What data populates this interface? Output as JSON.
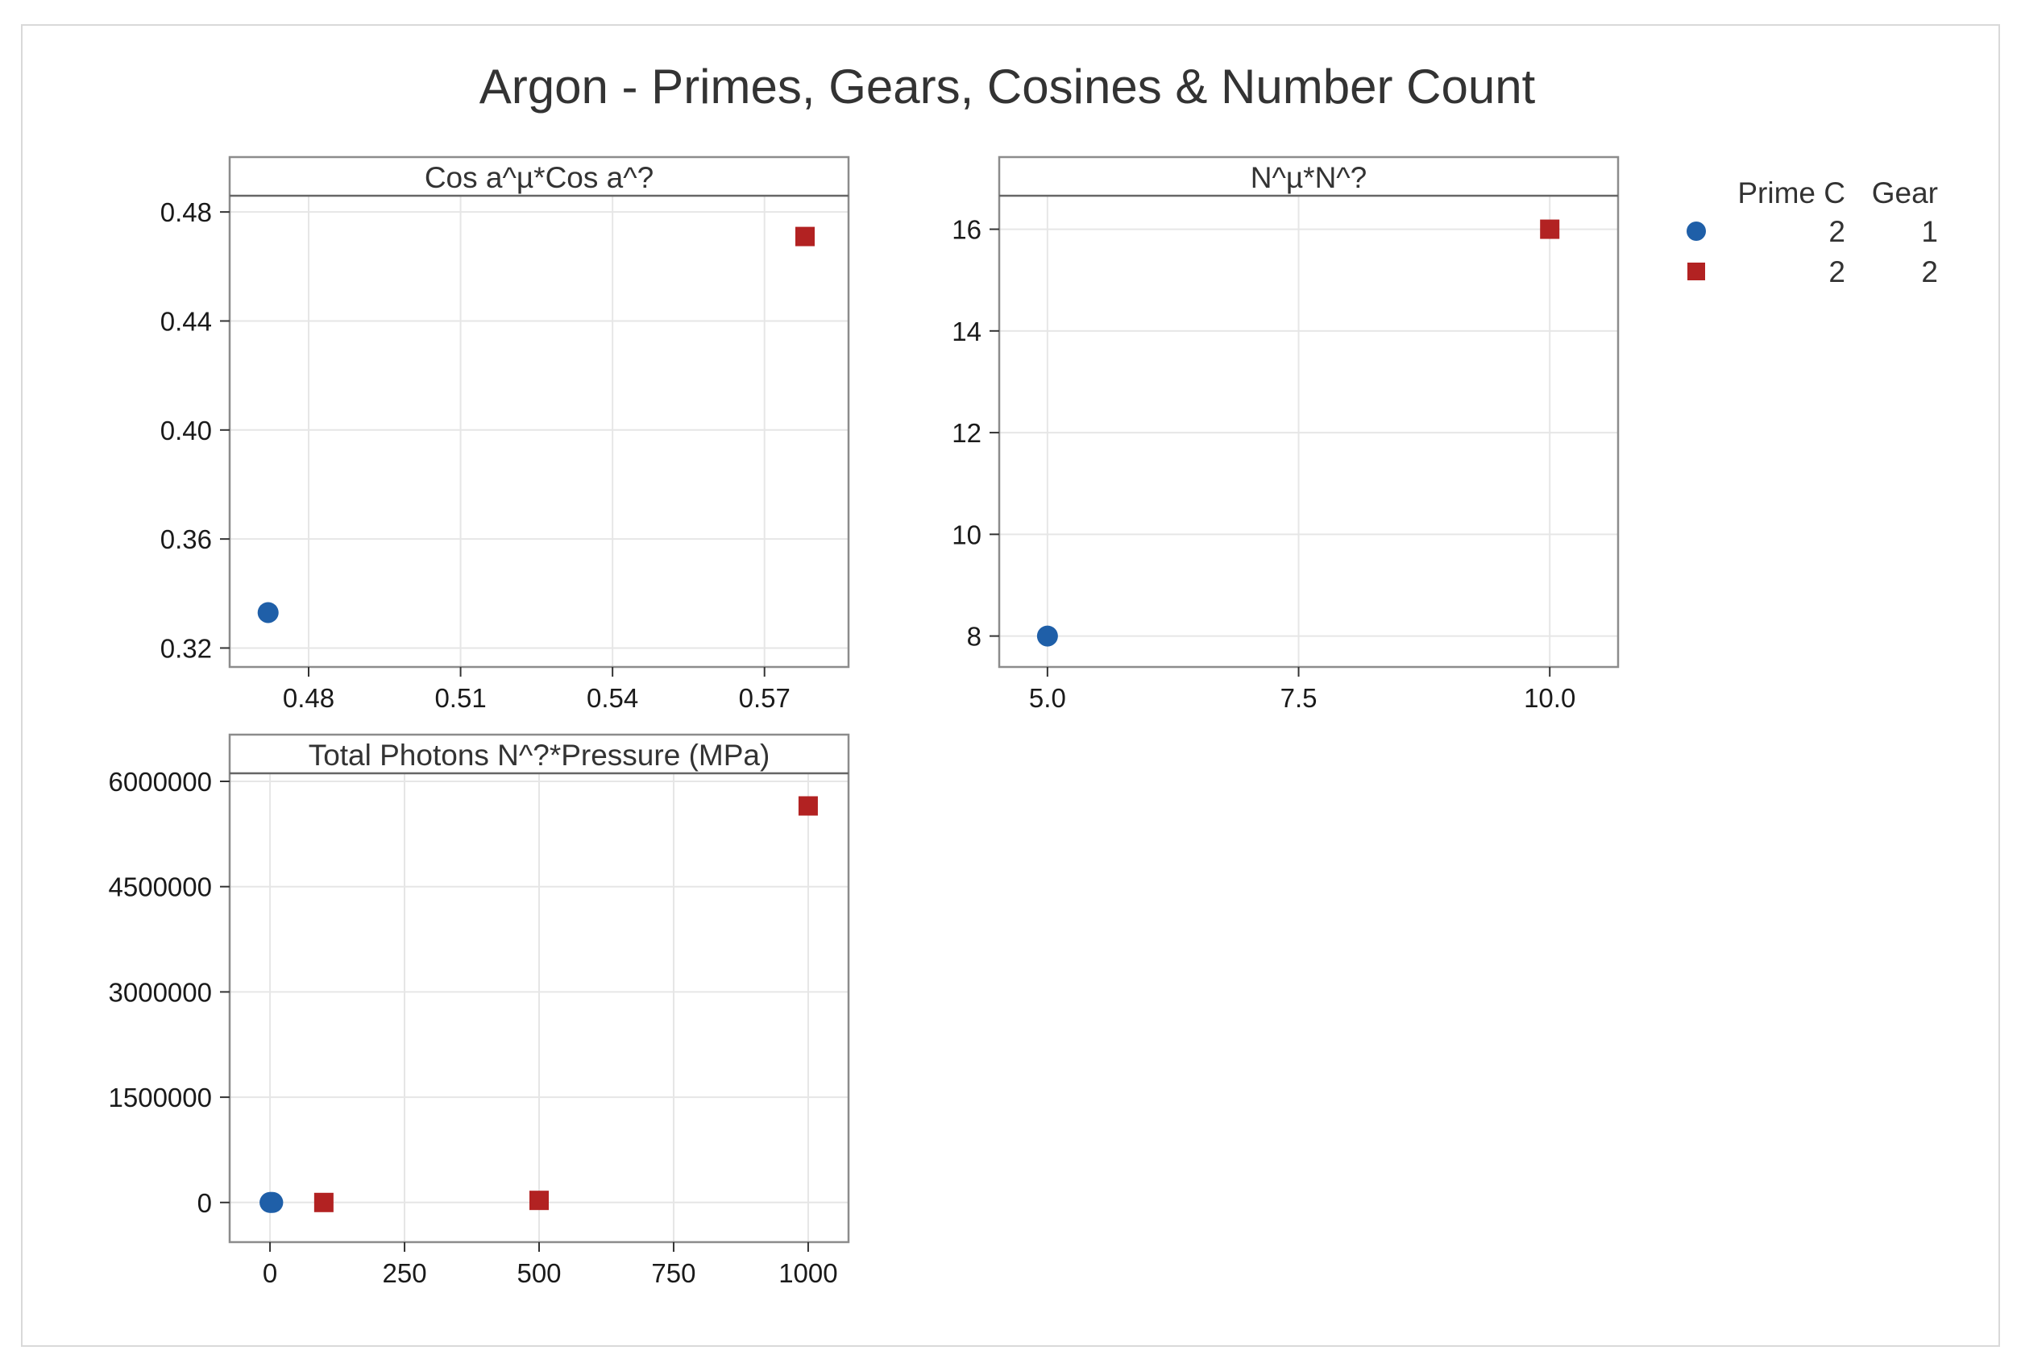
{
  "chart_data": {
    "type": "scatter",
    "title": "Argon - Primes, Gears, Cosines & Number Count",
    "colors": {
      "group1": "#1f5fa8",
      "group2": "#b22222",
      "grid": "#e6e6e6",
      "frame": "#8c8c8c"
    },
    "legend": {
      "placement": "top-right",
      "headers": [
        "Prime C",
        "Gear"
      ],
      "entries": [
        {
          "marker": "circle",
          "color": "#1f5fa8",
          "prime_c": "2",
          "gear": "1"
        },
        {
          "marker": "square",
          "color": "#b22222",
          "prime_c": "2",
          "gear": "2"
        }
      ]
    },
    "panels": [
      {
        "title": "Cos a^µ*Cos a^?",
        "xlim": [
          0.466,
          0.585
        ],
        "ylim": [
          0.316,
          0.483
        ],
        "xticks": [
          0.48,
          0.51,
          0.54,
          0.57
        ],
        "xtick_labels": [
          "0.48",
          "0.51",
          "0.54",
          "0.57"
        ],
        "yticks": [
          0.32,
          0.36,
          0.4,
          0.44,
          0.48
        ],
        "ytick_labels": [
          "0.32",
          "0.36",
          "0.40",
          "0.44",
          "0.48"
        ],
        "grid": true,
        "series": [
          {
            "group": 1,
            "marker": "circle",
            "points": [
              [
                0.472,
                0.333
              ]
            ]
          },
          {
            "group": 2,
            "marker": "square",
            "points": [
              [
                0.578,
                0.471
              ]
            ]
          }
        ]
      },
      {
        "title": "N^µ*N^?",
        "xlim": [
          4.6,
          10.6
        ],
        "ylim": [
          7.55,
          16.5
        ],
        "xticks": [
          5.0,
          7.5,
          10.0
        ],
        "xtick_labels": [
          "5.0",
          "7.5",
          "10.0"
        ],
        "yticks": [
          8,
          10,
          12,
          14,
          16
        ],
        "ytick_labels": [
          "8",
          "10",
          "12",
          "14",
          "16"
        ],
        "grid": true,
        "series": [
          {
            "group": 1,
            "marker": "circle",
            "points": [
              [
                5.0,
                8.0
              ]
            ]
          },
          {
            "group": 2,
            "marker": "square",
            "points": [
              [
                10.0,
                16.0
              ]
            ]
          }
        ]
      },
      {
        "title": "Total Photons N^?*Pressure (MPa)",
        "xlim": [
          -60,
          1060
        ],
        "ylim": [
          -450000,
          6000000
        ],
        "xticks": [
          0,
          250,
          500,
          750,
          1000
        ],
        "xtick_labels": [
          "0",
          "250",
          "500",
          "750",
          "1000"
        ],
        "yticks": [
          0,
          1500000,
          3000000,
          4500000,
          6000000
        ],
        "ytick_labels": [
          "0",
          "1500000",
          "3000000",
          "4500000",
          "6000000"
        ],
        "grid": true,
        "series": [
          {
            "group": 1,
            "marker": "circle",
            "points": [
              [
                0,
                0
              ],
              [
                2,
                0
              ],
              [
                5,
                0
              ]
            ]
          },
          {
            "group": 2,
            "marker": "square",
            "points": [
              [
                100,
                0
              ],
              [
                500,
                30000
              ],
              [
                1000,
                5650000
              ]
            ]
          }
        ]
      }
    ]
  }
}
